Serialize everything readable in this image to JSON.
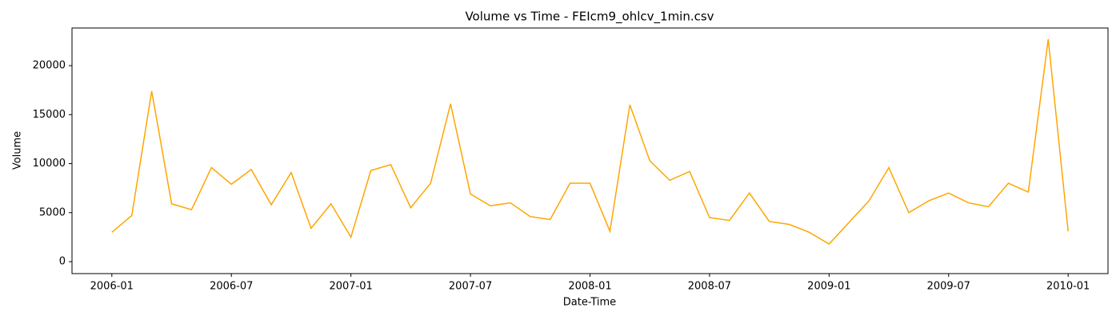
{
  "chart_data": {
    "type": "line",
    "title": "Volume vs Time - FEIcm9_ohlcv_1min.csv",
    "x_label": "Date-Time",
    "y_label": "Volume",
    "x": [
      "2006-01",
      "2006-02",
      "2006-03",
      "2006-04",
      "2006-05",
      "2006-06",
      "2006-07",
      "2006-08",
      "2006-09",
      "2006-10",
      "2006-11",
      "2006-12",
      "2007-01",
      "2007-02",
      "2007-03",
      "2007-04",
      "2007-05",
      "2007-06",
      "2007-07",
      "2007-08",
      "2007-09",
      "2007-10",
      "2007-11",
      "2007-12",
      "2008-01",
      "2008-02",
      "2008-03",
      "2008-04",
      "2008-05",
      "2008-06",
      "2008-07",
      "2008-08",
      "2008-09",
      "2008-10",
      "2008-11",
      "2008-12",
      "2009-01",
      "2009-02",
      "2009-03",
      "2009-04",
      "2009-05",
      "2009-06",
      "2009-07",
      "2009-08",
      "2009-09",
      "2009-10",
      "2009-11",
      "2009-12",
      "2010-01"
    ],
    "series": [
      {
        "name": "Volume",
        "color": "#ffa500",
        "values": [
          3000,
          4700,
          17400,
          5900,
          5300,
          9600,
          7900,
          9400,
          5800,
          9100,
          3400,
          5900,
          2500,
          9300,
          9900,
          5500,
          8000,
          16100,
          6900,
          5700,
          6000,
          4600,
          4300,
          8000,
          8000,
          3100,
          16000,
          10300,
          8300,
          9200,
          4500,
          4200,
          7000,
          4100,
          3800,
          3000,
          1800,
          4000,
          6200,
          9600,
          5000,
          6200,
          7000,
          6000,
          5600,
          8000,
          7100,
          22700,
          3100
        ]
      }
    ],
    "xlim": [
      "2005-11",
      "2010-03"
    ],
    "xticks": [
      "2006-01",
      "2006-07",
      "2007-01",
      "2007-07",
      "2008-01",
      "2008-07",
      "2009-01",
      "2009-07",
      "2010-01"
    ],
    "ylim": [
      -1220,
      23840
    ],
    "yticks": [
      0,
      5000,
      10000,
      15000,
      20000
    ]
  }
}
